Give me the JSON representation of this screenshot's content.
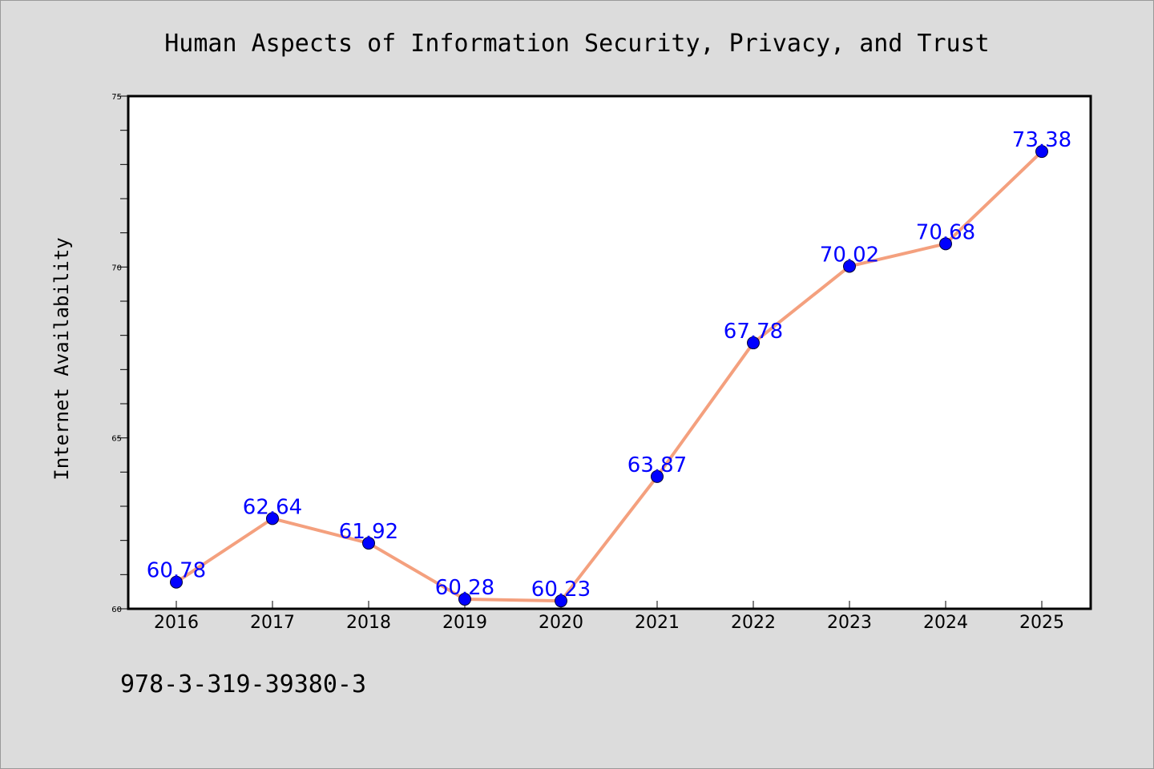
{
  "chart_data": {
    "type": "line",
    "title": "Human Aspects of Information Security, Privacy, and Trust",
    "xlabel": "",
    "ylabel": "Internet Availability",
    "categories": [
      "2016",
      "2017",
      "2018",
      "2019",
      "2020",
      "2021",
      "2022",
      "2023",
      "2024",
      "2025"
    ],
    "series": [
      {
        "values": [
          60.78,
          62.64,
          61.92,
          60.28,
          60.23,
          63.87,
          67.78,
          70.02,
          70.68,
          73.38
        ],
        "data_labels": [
          "60.78",
          "62.64",
          "61.92",
          "60.28",
          "60.23",
          "63.87",
          "67.78",
          "70.02",
          "70.68",
          "73.38"
        ]
      }
    ],
    "ylim": [
      60,
      75
    ],
    "yticks": [
      "60",
      "65",
      "70",
      "75"
    ],
    "grid": false,
    "legend": "none",
    "colors": {
      "line": "#f4a07e",
      "marker": "#0000ff",
      "data_label": "#0000ff",
      "background": "#dcdcdc",
      "plot_area": "#ffffff"
    }
  },
  "annotation": "978-3-319-39380-3"
}
